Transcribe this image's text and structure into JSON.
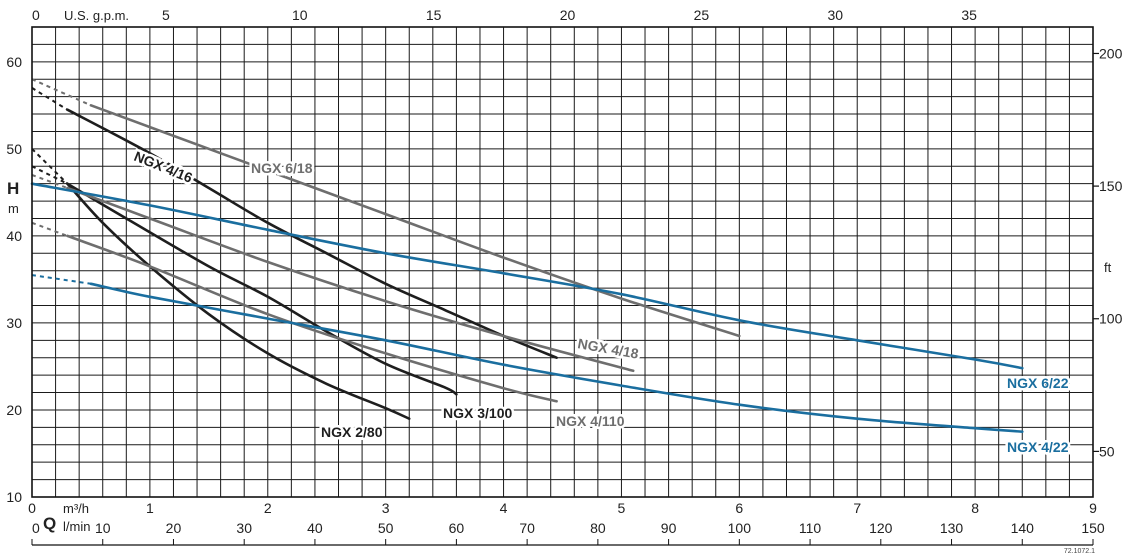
{
  "colors": {
    "black": "#1e1e1e",
    "gray": "#6e6e6e",
    "blue": "#1a6e9f",
    "grid": "#1a1a1a"
  },
  "labels": {
    "top_unit": "U.S. g.p.m.",
    "left_axis": "H",
    "left_unit": "m",
    "right_unit": "ft",
    "q": "Q",
    "m3h_unit": "m³/h",
    "lmin_unit": "l/min",
    "code": "72.1072.1"
  },
  "chart_data": {
    "type": "line",
    "x_unit": "m³/h",
    "xlim": [
      0,
      9
    ],
    "ylim": [
      10,
      64
    ],
    "grid": true,
    "x_ticks_m3h": [
      "0",
      "1",
      "2",
      "3",
      "4",
      "5",
      "6",
      "7",
      "8",
      "9"
    ],
    "x_ticks_lmin": [
      "0",
      "10",
      "20",
      "30",
      "40",
      "50",
      "60",
      "70",
      "80",
      "90",
      "100",
      "110",
      "120",
      "130",
      "140",
      "150"
    ],
    "x_ticks_gpm": [
      "0",
      "5",
      "10",
      "15",
      "20",
      "25",
      "30",
      "35"
    ],
    "y_ticks_m": [
      "10",
      "20",
      "30",
      "40",
      "50",
      "60"
    ],
    "y_ticks_ft": [
      "50",
      "100",
      "150",
      "200"
    ],
    "y_ticks_ft_values": [
      50,
      100,
      150,
      200
    ],
    "series": [
      {
        "name": "NGX 2/80",
        "color": "black",
        "x": [
          0.3,
          0.6,
          1.0,
          1.5,
          2.0,
          2.5,
          3.0,
          3.2
        ],
        "y": [
          46.0,
          41.5,
          36.5,
          31.0,
          26.5,
          23.0,
          20.2,
          19.0
        ],
        "ext_x": [
          0.0,
          0.3
        ],
        "ext_y": [
          50.0,
          46.0
        ]
      },
      {
        "name": "NGX 3/100",
        "color": "black",
        "x": [
          0.3,
          0.8,
          1.5,
          2.0,
          2.5,
          3.0,
          3.5,
          3.6
        ],
        "y": [
          46.0,
          42.0,
          36.5,
          33.0,
          29.0,
          25.3,
          22.6,
          21.8
        ],
        "ext_x": [
          0.0,
          0.3
        ],
        "ext_y": [
          48.0,
          46.0
        ]
      },
      {
        "name": "NGX 4/16",
        "color": "black",
        "x": [
          0.3,
          1.0,
          1.5,
          2.0,
          2.5,
          3.0,
          3.5,
          4.0,
          4.45
        ],
        "y": [
          54.5,
          49.5,
          45.5,
          41.5,
          38.0,
          34.5,
          31.5,
          28.5,
          26.0
        ],
        "ext_x": [
          0.0,
          0.3
        ],
        "ext_y": [
          57.0,
          54.5
        ]
      },
      {
        "name": "NGX 4/110",
        "color": "gray",
        "x": [
          0.3,
          1.0,
          2.0,
          3.0,
          4.0,
          4.45
        ],
        "y": [
          40.0,
          36.5,
          31.0,
          26.5,
          22.5,
          21.0
        ],
        "ext_x": [
          0.0,
          0.3
        ],
        "ext_y": [
          41.5,
          40.0
        ]
      },
      {
        "name": "NGX 4/18",
        "color": "gray",
        "x": [
          0.3,
          1.0,
          2.0,
          3.0,
          4.0,
          5.1
        ],
        "y": [
          45.5,
          42.0,
          37.0,
          32.5,
          28.5,
          24.5
        ],
        "ext_x": [
          0.0,
          0.3
        ],
        "ext_y": [
          47.0,
          45.5
        ]
      },
      {
        "name": "NGX 6/18",
        "color": "gray",
        "x": [
          0.5,
          1.0,
          2.0,
          3.0,
          4.0,
          5.0,
          6.0
        ],
        "y": [
          55.0,
          52.5,
          47.5,
          42.5,
          37.5,
          32.8,
          28.5
        ],
        "ext_x": [
          0.0,
          0.5
        ],
        "ext_y": [
          58.0,
          55.0
        ]
      },
      {
        "name": "NGX 4/22",
        "color": "blue",
        "x": [
          0.5,
          1.0,
          2.0,
          3.0,
          4.0,
          5.0,
          6.0,
          7.0,
          8.0,
          8.4
        ],
        "y": [
          34.5,
          33.0,
          30.5,
          28.0,
          25.2,
          22.8,
          20.6,
          19.0,
          17.9,
          17.5
        ],
        "ext_x": [
          0.0,
          0.5
        ],
        "ext_y": [
          35.5,
          34.5
        ]
      },
      {
        "name": "NGX 6/22",
        "color": "blue",
        "x": [
          0.0,
          1.0,
          2.0,
          3.0,
          4.0,
          5.0,
          6.0,
          7.0,
          8.0,
          8.4
        ],
        "y": [
          46.0,
          43.5,
          40.7,
          38.0,
          35.7,
          33.3,
          30.3,
          28.0,
          25.8,
          24.8
        ]
      }
    ],
    "series_labels": {
      "NGX 2/80": "NGX 2/80",
      "NGX 3/100": "NGX 3/100",
      "NGX 4/16": "NGX 4/16",
      "NGX 4/110": "NGX 4/110",
      "NGX 4/18": "NGX 4/18",
      "NGX 6/18": "NGX 6/18",
      "NGX 4/22": "NGX 4/22",
      "NGX 6/22": "NGX 6/22"
    }
  }
}
